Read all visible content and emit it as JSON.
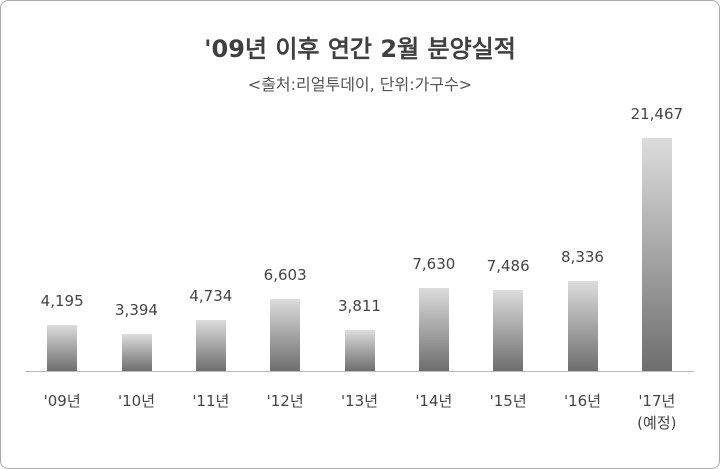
{
  "chart_data": {
    "type": "bar",
    "title": "'09년 이후 연간 2월 분양실적",
    "subtitle": "<출처:리얼투데이, 단위:가구수>",
    "categories": [
      "'09년",
      "'10년",
      "'11년",
      "'12년",
      "'13년",
      "'14년",
      "'15년",
      "'16년",
      "'17년\n(예정)"
    ],
    "values": [
      4195,
      3394,
      4734,
      6603,
      3811,
      7630,
      7486,
      8336,
      21467
    ],
    "value_labels": [
      "4,195",
      "3,394",
      "4,734",
      "6,603",
      "3,811",
      "7,630",
      "7,486",
      "8,336",
      "21,467"
    ]
  }
}
